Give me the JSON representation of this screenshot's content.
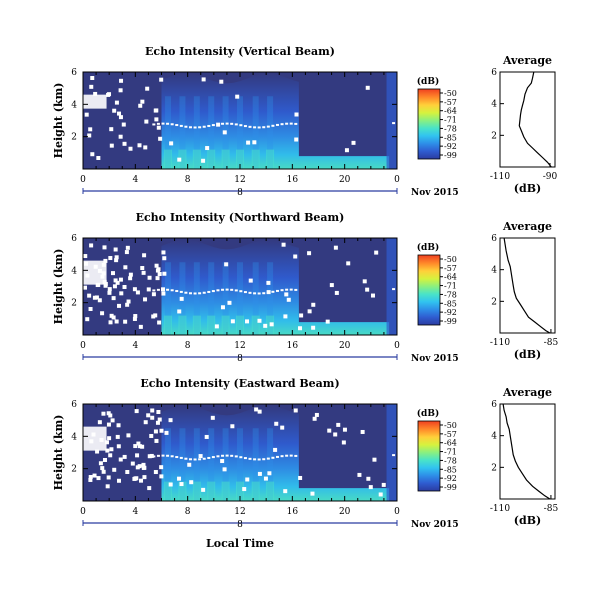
{
  "colors": {
    "background_contour": "#333a80",
    "cmap": [
      "#2b3ca0",
      "#2f5cd0",
      "#2e8ee8",
      "#31c3f0",
      "#49e3c8",
      "#8af080",
      "#d6f23e",
      "#ffd03a",
      "#ff8a2a",
      "#f04020"
    ],
    "dropout": "#ffffff"
  },
  "panels": [
    {
      "title": "Echo Intensity (Vertical Beam)",
      "ylabel": "Height (km)",
      "cbar_unit": "(dB)",
      "cbar_ticks": [
        "-50",
        "-57",
        "-64",
        "-71",
        "-78",
        "-85",
        "-92",
        "-99"
      ],
      "avg_title": "Average",
      "avg_xlabel": "(dB)",
      "avg_xticks": [
        "-110",
        "-90"
      ],
      "date_label": "Nov 2015",
      "day_label": "8"
    },
    {
      "title": "Echo Intensity (Northward Beam)",
      "ylabel": "Height (km)",
      "cbar_unit": "(dB)",
      "cbar_ticks": [
        "-50",
        "-57",
        "-64",
        "-71",
        "-78",
        "-85",
        "-92",
        "-99"
      ],
      "avg_title": "Average",
      "avg_xlabel": "(dB)",
      "avg_xticks": [
        "-110",
        "-85"
      ],
      "date_label": "Nov 2015",
      "day_label": "8"
    },
    {
      "title": "Echo Intensity (Eastward Beam)",
      "ylabel": "Height (km)",
      "cbar_unit": "(dB)",
      "cbar_ticks": [
        "-50",
        "-57",
        "-64",
        "-71",
        "-78",
        "-85",
        "-92",
        "-99"
      ],
      "avg_title": "Average",
      "avg_xlabel": "(dB)",
      "avg_xticks": [
        "-110",
        "-85"
      ],
      "date_label": "Nov 2015",
      "day_label": "8"
    }
  ],
  "xlabel_bottom": "Local Time",
  "chart_data": [
    {
      "type": "heatmap",
      "title": "Echo Intensity (Vertical Beam)",
      "ylabel": "Height (km)",
      "xlabel": "Local Time",
      "x_ticks": [
        "0",
        "4",
        "8",
        "12",
        "16",
        "20",
        "0"
      ],
      "y_ticks": [
        "2",
        "4",
        "6"
      ],
      "xlim": [
        0,
        24
      ],
      "ylim": [
        0,
        6
      ],
      "colorbar": {
        "label": "(dB)",
        "ticks": [
          -50,
          -57,
          -64,
          -71,
          -78,
          -85,
          -92,
          -99
        ]
      },
      "average_profile": {
        "title": "Average",
        "xlabel": "(dB)",
        "x_ticks": [
          -110,
          -90
        ],
        "xlim": [
          -110,
          -88
        ],
        "ylim": [
          0,
          6
        ],
        "y_ticks": [
          2,
          4,
          6
        ],
        "points": [
          [
            -96.5,
            6.0
          ],
          [
            -97.0,
            5.6
          ],
          [
            -97.5,
            5.3
          ],
          [
            -99.0,
            5.0
          ],
          [
            -100.0,
            4.6
          ],
          [
            -100.5,
            4.2
          ],
          [
            -101.0,
            3.9
          ],
          [
            -101.5,
            3.6
          ],
          [
            -101.8,
            3.3
          ],
          [
            -102.0,
            3.0
          ],
          [
            -102.3,
            2.6
          ],
          [
            -101.5,
            2.3
          ],
          [
            -100.5,
            1.9
          ],
          [
            -99.0,
            1.5
          ],
          [
            -97.0,
            1.2
          ],
          [
            -95.0,
            0.9
          ],
          [
            -93.0,
            0.6
          ],
          [
            -91.0,
            0.3
          ],
          [
            -89.5,
            0.0
          ]
        ]
      }
    },
    {
      "type": "heatmap",
      "title": "Echo Intensity (Northward Beam)",
      "ylabel": "Height (km)",
      "xlabel": "Local Time",
      "x_ticks": [
        "0",
        "4",
        "8",
        "12",
        "16",
        "20",
        "0"
      ],
      "y_ticks": [
        "2",
        "4",
        "6"
      ],
      "xlim": [
        0,
        24
      ],
      "ylim": [
        0,
        6
      ],
      "colorbar": {
        "label": "(dB)",
        "ticks": [
          -50,
          -57,
          -64,
          -71,
          -78,
          -85,
          -92,
          -99
        ]
      },
      "average_profile": {
        "title": "Average",
        "xlabel": "(dB)",
        "x_ticks": [
          -110,
          -85
        ],
        "xlim": [
          -110,
          -83
        ],
        "ylim": [
          0,
          6
        ],
        "y_ticks": [
          2,
          4,
          6
        ],
        "points": [
          [
            -108.0,
            6.0
          ],
          [
            -107.5,
            5.6
          ],
          [
            -107.0,
            5.2
          ],
          [
            -106.5,
            4.9
          ],
          [
            -106.0,
            4.6
          ],
          [
            -105.0,
            4.2
          ],
          [
            -104.5,
            3.8
          ],
          [
            -104.0,
            3.4
          ],
          [
            -103.5,
            3.0
          ],
          [
            -103.0,
            2.6
          ],
          [
            -102.0,
            2.2
          ],
          [
            -100.0,
            1.8
          ],
          [
            -98.0,
            1.4
          ],
          [
            -96.0,
            1.0
          ],
          [
            -93.0,
            0.7
          ],
          [
            -90.0,
            0.4
          ],
          [
            -87.5,
            0.15
          ],
          [
            -85.5,
            0.0
          ]
        ]
      }
    },
    {
      "type": "heatmap",
      "title": "Echo Intensity (Eastward Beam)",
      "ylabel": "Height (km)",
      "xlabel": "Local Time",
      "x_ticks": [
        "0",
        "4",
        "8",
        "12",
        "16",
        "20",
        "0"
      ],
      "y_ticks": [
        "2",
        "4",
        "6"
      ],
      "xlim": [
        0,
        24
      ],
      "ylim": [
        0,
        6
      ],
      "colorbar": {
        "label": "(dB)",
        "ticks": [
          -50,
          -57,
          -64,
          -71,
          -78,
          -85,
          -92,
          -99
        ]
      },
      "average_profile": {
        "title": "Average",
        "xlabel": "(dB)",
        "x_ticks": [
          -110,
          -85
        ],
        "xlim": [
          -110,
          -83
        ],
        "ylim": [
          0,
          6
        ],
        "y_ticks": [
          2,
          4,
          6
        ],
        "points": [
          [
            -108.5,
            6.0
          ],
          [
            -108.0,
            5.6
          ],
          [
            -107.0,
            5.2
          ],
          [
            -106.5,
            4.8
          ],
          [
            -105.5,
            4.4
          ],
          [
            -105.0,
            4.0
          ],
          [
            -104.5,
            3.6
          ],
          [
            -104.0,
            3.2
          ],
          [
            -103.5,
            2.8
          ],
          [
            -102.5,
            2.4
          ],
          [
            -101.0,
            2.0
          ],
          [
            -99.0,
            1.6
          ],
          [
            -97.0,
            1.2
          ],
          [
            -94.0,
            0.8
          ],
          [
            -91.0,
            0.5
          ],
          [
            -88.0,
            0.2
          ],
          [
            -85.5,
            0.0
          ]
        ]
      }
    }
  ]
}
